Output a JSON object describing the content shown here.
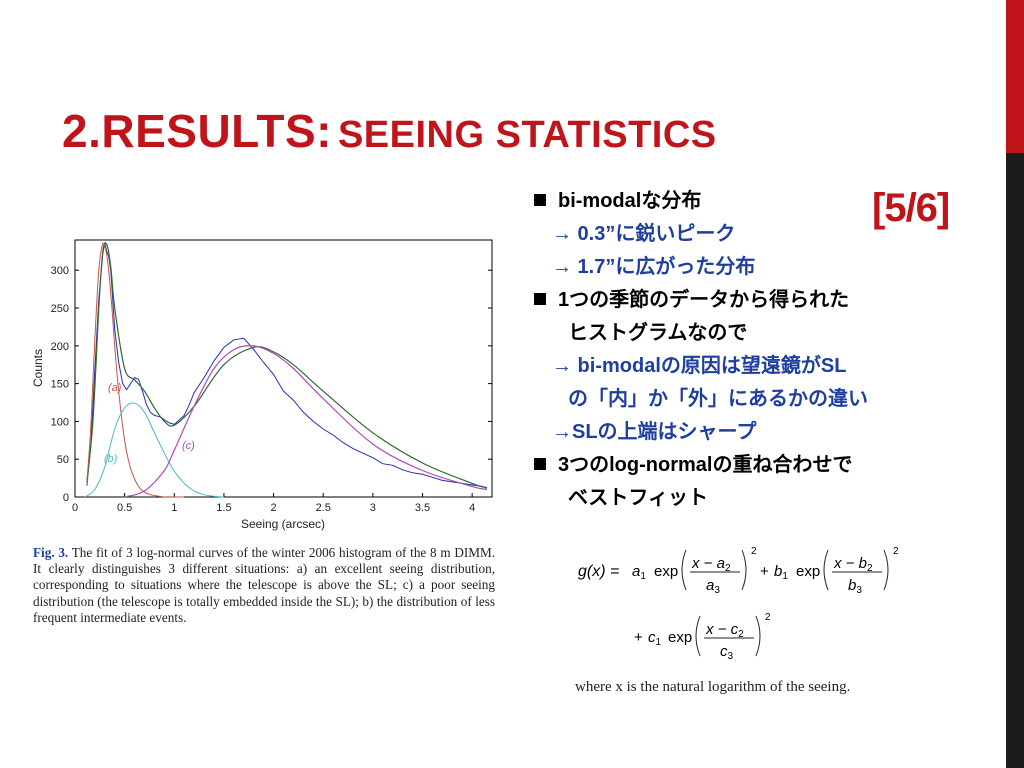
{
  "colors": {
    "accent_red": "#c0141b",
    "side_dark": "#1b1b1b",
    "sub_blue": "#1f3f9f",
    "hist_blue": "#2a2ab8",
    "fit_green": "#2e6b2e",
    "curve_a": "#c8534b",
    "curve_b": "#4fb8c4",
    "curve_c": "#b04ab4"
  },
  "slide": {
    "title_main": "2.RESULTS:",
    "title_sub": "SEEING STATISTICS",
    "slide_number": "[5/6]"
  },
  "bullets": [
    {
      "level": 1,
      "text": "bi-modalな分布"
    },
    {
      "level": 2,
      "text": "→ 0.3”に鋭いピーク"
    },
    {
      "level": 2,
      "text": "→ 1.7”に広がった分布"
    },
    {
      "level": 1,
      "text": "1つの季節のデータから得られた"
    },
    {
      "level": 0,
      "text": "ヒストグラムなので"
    },
    {
      "level": 2,
      "text": "→ bi-modalの原因は望遠鏡がSL"
    },
    {
      "level": 3,
      "text": "の「内」か「外」にあるかの違い"
    },
    {
      "level": 2,
      "text": "→SLの上端はシャープ"
    },
    {
      "level": 1,
      "text": "3つのlog-normalの重ね合わせで"
    },
    {
      "level": 0,
      "text": "ベストフィット"
    }
  ],
  "caption": {
    "label": "Fig. 3.",
    "text": "The fit of 3 log-normal curves of the winter 2006 histogram of the 8 m DIMM. It clearly distinguishes 3 different situations: a) an excellent seeing distribution, corresponding to situations where the telescope is above the SL; c) a poor seeing distribution (the telescope is totally embedded inside the SL); b) the distribution of less frequent intermediate events."
  },
  "formula": {
    "line1_lhs": "g(x) =",
    "note": "where x is the natural logarithm of the seeing."
  },
  "chart_data": {
    "type": "line",
    "xlabel": "Seeing (arcsec)",
    "ylabel": "Counts",
    "xlim": [
      0,
      4.2
    ],
    "ylim": [
      0,
      340
    ],
    "xticks": [
      "0",
      "0.5",
      "1",
      "1.5",
      "2",
      "2.5",
      "3",
      "3.5",
      "4"
    ],
    "yticks": [
      "0",
      "50",
      "100",
      "150",
      "200",
      "250",
      "300"
    ],
    "grid": false,
    "annotations": [
      "(a)",
      "(b)",
      "(c)"
    ],
    "series": [
      {
        "x": [
          0.12,
          0.16,
          0.2,
          0.24,
          0.28,
          0.3,
          0.32,
          0.34,
          0.36,
          0.38,
          0.4,
          0.44,
          0.48,
          0.52,
          0.56,
          0.6,
          0.64,
          0.68,
          0.72,
          0.76,
          0.8,
          0.86,
          0.9,
          0.95,
          1.0,
          1.05,
          1.1,
          1.15,
          1.2,
          1.3,
          1.4,
          1.5,
          1.6,
          1.7,
          1.8,
          1.9,
          2.0,
          2.1,
          2.2,
          2.3,
          2.4,
          2.5,
          2.6,
          2.7,
          2.8,
          2.9,
          3.0,
          3.1,
          3.2,
          3.3,
          3.4,
          3.5,
          3.6,
          3.7,
          3.8,
          3.9,
          4.0,
          4.1,
          4.15
        ],
        "values": [
          15,
          70,
          170,
          262,
          322,
          336,
          325,
          318,
          300,
          262,
          222,
          178,
          150,
          142,
          150,
          158,
          156,
          140,
          122,
          112,
          108,
          106,
          102,
          98,
          96,
          102,
          108,
          122,
          138,
          158,
          180,
          198,
          208,
          210,
          195,
          178,
          162,
          140,
          128,
          112,
          100,
          90,
          82,
          72,
          64,
          58,
          52,
          44,
          42,
          36,
          32,
          30,
          26,
          22,
          20,
          18,
          16,
          14,
          12
        ]
      },
      {
        "x": [
          0.12,
          0.18,
          0.24,
          0.28,
          0.32,
          0.36,
          0.4,
          0.5,
          0.6,
          0.7,
          0.8,
          0.9,
          1.0,
          1.2,
          1.5,
          1.8,
          2.0,
          2.2,
          2.5,
          3.0,
          3.5,
          4.0,
          4.15
        ],
        "values": [
          20,
          100,
          250,
          325,
          334,
          305,
          250,
          170,
          155,
          140,
          118,
          100,
          95,
          120,
          175,
          198,
          192,
          175,
          140,
          85,
          45,
          18,
          12
        ]
      },
      {
        "x": [
          0.12,
          0.16,
          0.2,
          0.24,
          0.28,
          0.32,
          0.36,
          0.4,
          0.44,
          0.5,
          0.56,
          0.64,
          0.72,
          0.8,
          0.9,
          1.0,
          1.1
        ],
        "values": [
          20,
          95,
          210,
          300,
          335,
          320,
          270,
          200,
          140,
          75,
          38,
          14,
          5,
          2,
          0,
          0,
          0
        ]
      },
      {
        "x": [
          0.1,
          0.2,
          0.3,
          0.4,
          0.5,
          0.6,
          0.7,
          0.8,
          0.9,
          1.0,
          1.1,
          1.2,
          1.3,
          1.4,
          1.5
        ],
        "values": [
          0,
          10,
          40,
          90,
          118,
          124,
          112,
          85,
          58,
          34,
          18,
          8,
          3,
          1,
          0
        ]
      },
      {
        "x": [
          0.5,
          0.7,
          0.9,
          1.0,
          1.2,
          1.4,
          1.6,
          1.8,
          2.0,
          2.2,
          2.5,
          3.0,
          3.5,
          4.0,
          4.15
        ],
        "values": [
          0,
          8,
          35,
          62,
          120,
          170,
          195,
          200,
          190,
          170,
          130,
          70,
          35,
          14,
          10
        ]
      }
    ]
  }
}
